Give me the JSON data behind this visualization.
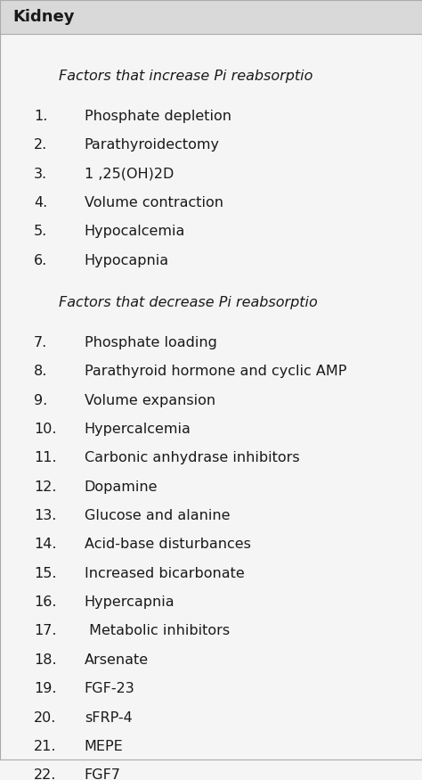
{
  "header": "Kidney",
  "header_bg": "#d9d9d9",
  "bg_color": "#f5f5f5",
  "section1_title": "Factors that increase Pi reabsorptio",
  "section2_title": "Factors that decrease Pi reabsorptio",
  "increase_items": [
    [
      "1.",
      "Phosphate depletion"
    ],
    [
      "2.",
      "Parathyroidectomy"
    ],
    [
      "3.",
      "1 ,25(OH)2D"
    ],
    [
      "4.",
      "Volume contraction"
    ],
    [
      "5.",
      "Hypocalcemia"
    ],
    [
      "6.",
      "Hypocapnia"
    ]
  ],
  "decrease_items": [
    [
      "7.",
      "Phosphate loading"
    ],
    [
      "8.",
      "Parathyroid hormone and cyclic AMP"
    ],
    [
      "9.",
      "Volume expansion"
    ],
    [
      "10.",
      "Hypercalcemia"
    ],
    [
      "11.",
      "Carbonic anhydrase inhibitors"
    ],
    [
      "12.",
      "Dopamine"
    ],
    [
      "13.",
      "Glucose and alanine"
    ],
    [
      "14.",
      "Acid-base disturbances"
    ],
    [
      "15.",
      "Increased bicarbonate"
    ],
    [
      "16.",
      "Hypercapnia"
    ],
    [
      "17.",
      " Metabolic inhibitors"
    ],
    [
      "18.",
      "Arsenate"
    ],
    [
      "19.",
      "FGF-23"
    ],
    [
      "20.",
      "sFRP-4"
    ],
    [
      "21.",
      "MEPE"
    ],
    [
      "22.",
      "FGF7"
    ]
  ],
  "font_size_header": 13,
  "font_size_section": 11.5,
  "font_size_items": 11.5,
  "text_color": "#1a1a1a",
  "line_color": "#aaaaaa"
}
